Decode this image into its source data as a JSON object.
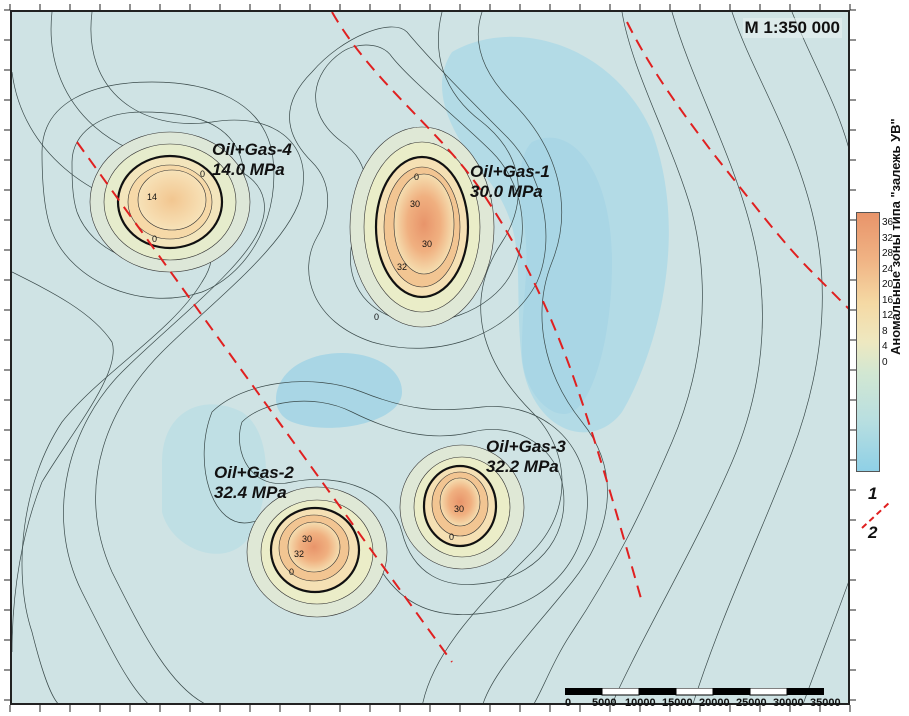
{
  "map": {
    "scale_title": "M 1:350 000",
    "fields": [
      {
        "name": "Oil+Gas-1",
        "pressure": "30.0 MPa"
      },
      {
        "name": "Oil+Gas-2",
        "pressure": "32.4 MPa"
      },
      {
        "name": "Oil+Gas-3",
        "pressure": "32.2 MPa"
      },
      {
        "name": "Oil+Gas-4",
        "pressure": "14.0 MPa"
      }
    ],
    "contour_labels": [
      "0",
      "30",
      "30",
      "32",
      "14",
      "0",
      "0",
      "32",
      "30",
      "0",
      "30",
      "0",
      "0"
    ]
  },
  "legend": {
    "title": "Аномальные зоны типа \"залежь УВ\"",
    "ticks": [
      "36",
      "32",
      "28",
      "24",
      "20",
      "16",
      "12",
      "8",
      "4",
      "0"
    ],
    "key_1": "1",
    "key_2": "2",
    "colors": {
      "high": "#e8946a",
      "mid": "#f5deb0",
      "low": "#8fd0e6"
    }
  },
  "scale_bar": {
    "labels": [
      "0",
      "5000",
      "10000",
      "15000",
      "20000",
      "25000",
      "30000",
      "35000"
    ]
  },
  "colors": {
    "fault": "#e02020",
    "background": "#cde3e6",
    "contour": "#333333"
  }
}
